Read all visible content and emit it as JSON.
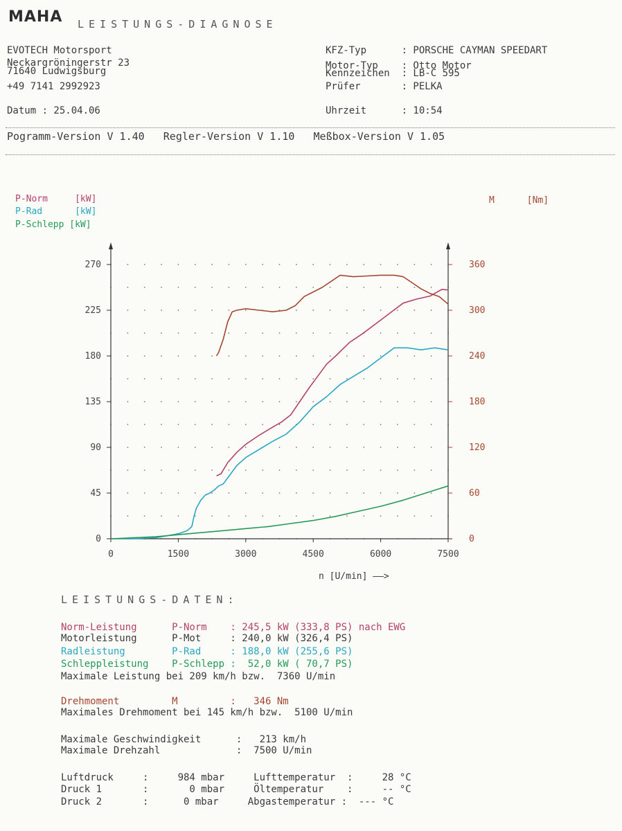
{
  "header": {
    "logo": "MAHA",
    "title": "LEISTUNGS-DIAGNOSE",
    "company": "EVOTECH Motorsport",
    "street": "Neckargröningerstr 23",
    "city": "71640 Ludwigsburg",
    "phone": "+49 7141 2992923",
    "datum": "Datum : 25.04.06",
    "kfz_typ": "KFZ-Typ      : PORSCHE CAYMAN SPEEDART",
    "motor_typ": "Motor-Typ    : Otto Motor",
    "kennzeichen": "Kennzeichen  : LB-C 595",
    "pruefer": "Prüfer       : PELKA",
    "uhrzeit": "Uhrzeit      : 10:54",
    "versions": "Pogramm-Version V 1.40   Regler-Version V 1.10   Meßbox-Version V 1.05"
  },
  "legend": {
    "p_norm": "P-Norm     [kW]",
    "p_rad": "P-Rad      [kW]",
    "p_schlepp": "P-Schlepp [kW]",
    "m_label": "M      [Nm]"
  },
  "colors": {
    "p_norm": "#b4426a",
    "p_rad": "#2aa7c2",
    "p_schlepp": "#259a58",
    "m": "#a5472e"
  },
  "chart_data": {
    "type": "line",
    "title": "",
    "xlabel": "n [U/min] ——>",
    "ylabel_left": "[kW]",
    "ylabel_right": "[Nm]",
    "xlim": [
      0,
      7500
    ],
    "ylim_left": [
      0,
      270
    ],
    "ylim_right": [
      0,
      360
    ],
    "x_ticks": [
      0,
      1500,
      3000,
      4500,
      6000,
      7500
    ],
    "y_ticks_left": [
      0,
      45,
      90,
      135,
      180,
      225,
      270
    ],
    "y_ticks_right": [
      0,
      60,
      120,
      180,
      240,
      300,
      360
    ],
    "grid": "dotted",
    "series": [
      {
        "name": "P-Norm",
        "axis": "left",
        "x": [
          2350,
          2450,
          2600,
          2800,
          3000,
          3300,
          3600,
          3800,
          4000,
          4200,
          4400,
          4600,
          4800,
          5000,
          5300,
          5600,
          5900,
          6200,
          6500,
          6800,
          7100,
          7360,
          7500
        ],
        "y": [
          62,
          64,
          75,
          85,
          93,
          102,
          110,
          115,
          122,
          135,
          148,
          160,
          172,
          180,
          193,
          202,
          212,
          222,
          232,
          236,
          239,
          245.5,
          245
        ]
      },
      {
        "name": "P-Rad",
        "axis": "left",
        "x": [
          0,
          500,
          1000,
          1500,
          1700,
          1800,
          1850,
          1900,
          2000,
          2100,
          2200,
          2300,
          2400,
          2500,
          2600,
          2800,
          3000,
          3300,
          3600,
          3900,
          4200,
          4500,
          4800,
          5100,
          5400,
          5700,
          6000,
          6300,
          6600,
          6900,
          7200,
          7500
        ],
        "y": [
          0,
          0,
          1,
          5,
          8,
          12,
          22,
          30,
          38,
          43,
          45,
          48,
          52,
          54,
          60,
          72,
          80,
          88,
          96,
          103,
          115,
          130,
          140,
          152,
          160,
          168,
          178,
          188,
          188,
          186,
          188,
          186
        ]
      },
      {
        "name": "P-Schlepp",
        "axis": "left",
        "x": [
          0,
          500,
          1000,
          1500,
          2000,
          2500,
          3000,
          3500,
          4000,
          4500,
          5000,
          5500,
          6000,
          6500,
          7000,
          7500
        ],
        "y": [
          0,
          1,
          2,
          4,
          6,
          8,
          10,
          12,
          15,
          18,
          22,
          27,
          32,
          38,
          45,
          52
        ]
      },
      {
        "name": "M",
        "axis": "right",
        "x": [
          2350,
          2400,
          2500,
          2600,
          2700,
          2800,
          3000,
          3300,
          3600,
          3900,
          4100,
          4300,
          4500,
          4700,
          4900,
          5100,
          5400,
          5700,
          6000,
          6300,
          6500,
          6700,
          6900,
          7100,
          7300,
          7500
        ],
        "y": [
          240,
          245,
          262,
          285,
          298,
          300,
          302,
          300,
          298,
          300,
          306,
          318,
          324,
          330,
          338,
          346,
          344,
          345,
          346,
          346,
          344,
          336,
          328,
          322,
          318,
          308
        ]
      }
    ]
  },
  "data_section": {
    "title": "LEISTUNGS-DATEN:",
    "norm": "Norm-Leistung      P-Norm    : 245,5 kW (333,8 PS) nach EWG",
    "mot": "Motorleistung      P-Mot     : 240,0 kW (326,4 PS)",
    "rad": "Radleistung        P-Rad     : 188,0 kW (255,6 PS)",
    "schlepp": "Schleppleistung    P-Schlepp :  52,0 kW ( 70,7 PS)",
    "max_leistung": "Maximale Leistung bei 209 km/h bzw.  7360 U/min",
    "drehmoment": "Drehmoment         M         :   346 Nm",
    "max_drehmoment": "Maximales Drehmoment bei 145 km/h bzw.  5100 U/min",
    "max_geschw": "Maximale Geschwindigkeit      :   213 km/h",
    "max_drehzahl": "Maximale Drehzahl             :  7500 U/min",
    "luftdruck": "Luftdruck     :     984 mbar     Lufttemperatur  :     28 °C",
    "druck1": "Druck 1       :       0 mbar     Öltemperatur    :     -- °C",
    "druck2": "Druck 2       :      0 mbar     Abgastemperatur :  --- °C"
  }
}
